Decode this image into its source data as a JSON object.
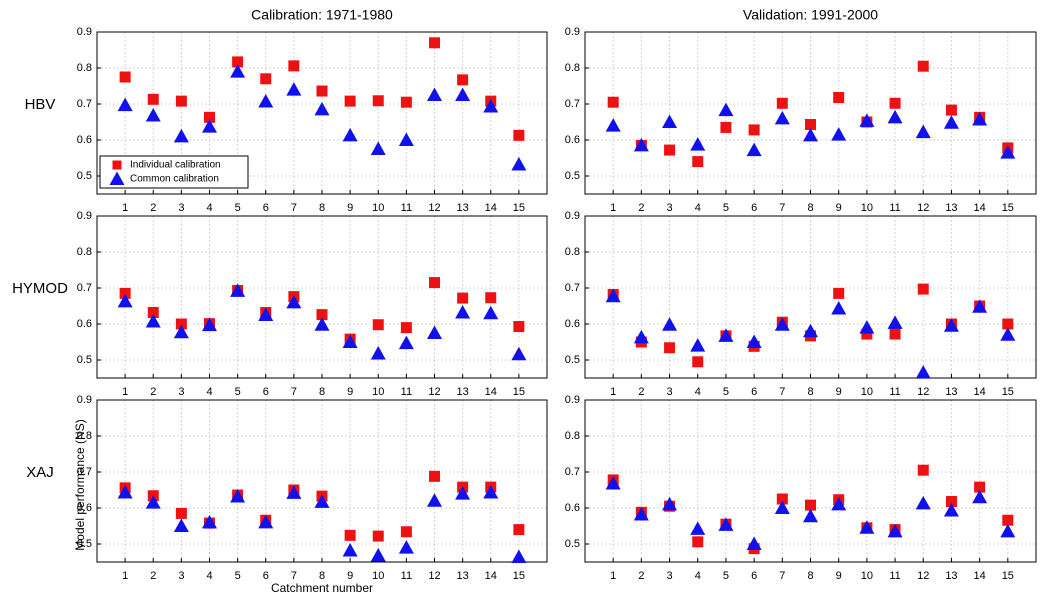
{
  "chart_data": [
    {
      "type": "scatter",
      "title": "Calibration: 1971-1980",
      "model": "HBV",
      "x": [
        1,
        2,
        3,
        4,
        5,
        6,
        7,
        8,
        9,
        10,
        11,
        12,
        13,
        14,
        15
      ],
      "xlim": [
        0,
        16
      ],
      "xticks": [
        1,
        2,
        3,
        4,
        5,
        6,
        7,
        8,
        9,
        10,
        11,
        12,
        13,
        14,
        15
      ],
      "ylim": [
        0.45,
        0.9
      ],
      "yticks": [
        0.5,
        0.6,
        0.7,
        0.8,
        0.9
      ],
      "grid": true,
      "legend": "lower left",
      "series": [
        {
          "name": "Individual calibration",
          "color": "#ee1111",
          "marker": "square",
          "values": [
            0.775,
            0.713,
            0.708,
            0.663,
            0.817,
            0.77,
            0.806,
            0.736,
            0.708,
            0.709,
            0.705,
            0.87,
            0.767,
            0.708,
            0.613
          ]
        },
        {
          "name": "Common calibration",
          "color": "#1111ee",
          "marker": "triangle",
          "values": [
            0.697,
            0.668,
            0.61,
            0.637,
            0.79,
            0.707,
            0.74,
            0.685,
            0.613,
            0.575,
            0.6,
            0.725,
            0.725,
            0.693,
            0.532
          ]
        }
      ]
    },
    {
      "type": "scatter",
      "title": "Validation: 1991-2000",
      "x": [
        1,
        2,
        3,
        4,
        5,
        6,
        7,
        8,
        9,
        10,
        11,
        12,
        13,
        14,
        15
      ],
      "xlim": [
        0,
        16
      ],
      "xticks": [
        1,
        2,
        3,
        4,
        5,
        6,
        7,
        8,
        9,
        10,
        11,
        12,
        13,
        14,
        15
      ],
      "ylim": [
        0.45,
        0.9
      ],
      "yticks": [
        0.5,
        0.6,
        0.7,
        0.8,
        0.9
      ],
      "grid": true,
      "series": [
        {
          "color": "#ee1111",
          "marker": "square",
          "values": [
            0.705,
            0.585,
            0.572,
            0.54,
            0.635,
            0.628,
            0.702,
            0.643,
            0.718,
            0.65,
            0.702,
            0.805,
            0.683,
            0.663,
            0.578
          ]
        },
        {
          "color": "#1111ee",
          "marker": "triangle",
          "values": [
            0.64,
            0.585,
            0.65,
            0.587,
            0.683,
            0.572,
            0.66,
            0.613,
            0.615,
            0.653,
            0.663,
            0.622,
            0.648,
            0.657,
            0.565
          ]
        }
      ]
    },
    {
      "type": "scatter",
      "model": "HYMOD",
      "x": [
        1,
        2,
        3,
        4,
        5,
        6,
        7,
        8,
        9,
        10,
        11,
        12,
        13,
        14,
        15
      ],
      "xlim": [
        0,
        16
      ],
      "xticks": [
        1,
        2,
        3,
        4,
        5,
        6,
        7,
        8,
        9,
        10,
        11,
        12,
        13,
        14,
        15
      ],
      "ylim": [
        0.45,
        0.9
      ],
      "yticks": [
        0.5,
        0.6,
        0.7,
        0.8,
        0.9
      ],
      "grid": true,
      "series": [
        {
          "color": "#ee1111",
          "marker": "square",
          "values": [
            0.685,
            0.632,
            0.6,
            0.601,
            0.693,
            0.632,
            0.676,
            0.626,
            0.558,
            0.598,
            0.59,
            0.715,
            0.672,
            0.673,
            0.593
          ]
        },
        {
          "color": "#1111ee",
          "marker": "triangle",
          "values": [
            0.663,
            0.607,
            0.577,
            0.597,
            0.692,
            0.625,
            0.66,
            0.598,
            0.55,
            0.518,
            0.547,
            0.575,
            0.632,
            0.63,
            0.516
          ]
        }
      ]
    },
    {
      "type": "scatter",
      "x": [
        1,
        2,
        3,
        4,
        5,
        6,
        7,
        8,
        9,
        10,
        11,
        12,
        13,
        14,
        15
      ],
      "xlim": [
        0,
        16
      ],
      "xticks": [
        1,
        2,
        3,
        4,
        5,
        6,
        7,
        8,
        9,
        10,
        11,
        12,
        13,
        14,
        15
      ],
      "ylim": [
        0.45,
        0.9
      ],
      "yticks": [
        0.5,
        0.6,
        0.7,
        0.8,
        0.9
      ],
      "grid": true,
      "series": [
        {
          "color": "#ee1111",
          "marker": "square",
          "values": [
            0.682,
            0.55,
            0.534,
            0.495,
            0.567,
            0.538,
            0.605,
            0.567,
            0.685,
            0.572,
            0.572,
            0.697,
            0.6,
            0.65,
            0.6
          ]
        },
        {
          "color": "#1111ee",
          "marker": "triangle",
          "values": [
            0.677,
            0.563,
            0.598,
            0.54,
            0.567,
            0.55,
            0.598,
            0.58,
            0.643,
            0.59,
            0.603,
            0.465,
            0.595,
            0.648,
            0.57
          ]
        }
      ]
    },
    {
      "type": "scatter",
      "model": "XAJ",
      "ylabel": "Model performance (NS)",
      "xlabel": "Catchment number",
      "x": [
        1,
        2,
        3,
        4,
        5,
        6,
        7,
        8,
        9,
        10,
        11,
        12,
        13,
        14,
        15
      ],
      "xlim": [
        0,
        16
      ],
      "xticks": [
        1,
        2,
        3,
        4,
        5,
        6,
        7,
        8,
        9,
        10,
        11,
        12,
        13,
        14,
        15
      ],
      "ylim": [
        0.45,
        0.9
      ],
      "yticks": [
        0.5,
        0.6,
        0.7,
        0.8,
        0.9
      ],
      "grid": true,
      "series": [
        {
          "color": "#ee1111",
          "marker": "square",
          "values": [
            0.656,
            0.634,
            0.585,
            0.558,
            0.636,
            0.566,
            0.65,
            0.633,
            0.524,
            0.522,
            0.534,
            0.688,
            0.658,
            0.658,
            0.54
          ]
        },
        {
          "color": "#1111ee",
          "marker": "triangle",
          "values": [
            0.643,
            0.615,
            0.55,
            0.56,
            0.632,
            0.56,
            0.642,
            0.617,
            0.482,
            0.468,
            0.49,
            0.62,
            0.64,
            0.643,
            0.464
          ]
        }
      ]
    },
    {
      "type": "scatter",
      "x": [
        1,
        2,
        3,
        4,
        5,
        6,
        7,
        8,
        9,
        10,
        11,
        12,
        13,
        14,
        15
      ],
      "xlim": [
        0,
        16
      ],
      "xticks": [
        1,
        2,
        3,
        4,
        5,
        6,
        7,
        8,
        9,
        10,
        11,
        12,
        13,
        14,
        15
      ],
      "ylim": [
        0.45,
        0.9
      ],
      "yticks": [
        0.5,
        0.6,
        0.7,
        0.8,
        0.9
      ],
      "grid": true,
      "series": [
        {
          "color": "#ee1111",
          "marker": "square",
          "values": [
            0.678,
            0.588,
            0.605,
            0.506,
            0.555,
            0.487,
            0.625,
            0.608,
            0.623,
            0.545,
            0.54,
            0.705,
            0.618,
            0.658,
            0.566
          ]
        },
        {
          "color": "#1111ee",
          "marker": "triangle",
          "values": [
            0.668,
            0.582,
            0.61,
            0.542,
            0.553,
            0.5,
            0.6,
            0.577,
            0.61,
            0.545,
            0.535,
            0.613,
            0.593,
            0.63,
            0.535
          ]
        }
      ]
    }
  ]
}
